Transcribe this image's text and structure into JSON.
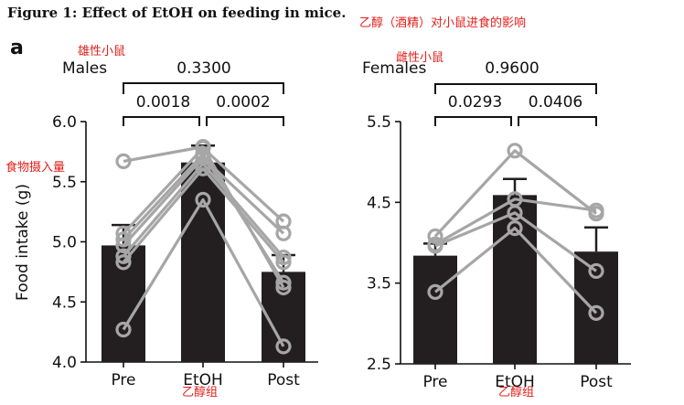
{
  "figure_title": "Figure 1: Effect of EtOH on feeding in mice.",
  "panel_letter": "a",
  "annotations_cn": {
    "figure_title": "乙醇（酒精）对小鼠进食的影响",
    "males": "雄性小鼠",
    "females": "雌性小鼠",
    "food_intake": "食物摄入量",
    "etoh_left": "乙醇组",
    "etoh_right": "乙醇组"
  },
  "colors": {
    "bar": "#231f20",
    "line": "#a6a6a6",
    "axis": "#111111",
    "annotation": "#e0201b"
  },
  "chart_data": [
    {
      "type": "bar",
      "group": "Males",
      "categories": [
        "Pre",
        "EtOH",
        "Post"
      ],
      "values": [
        4.97,
        5.66,
        4.75
      ],
      "errors": [
        0.17,
        0.14,
        0.14
      ],
      "ylabel": "Food intake (g)",
      "ylim": [
        4.0,
        6.0
      ],
      "yticks": [
        "4.0",
        "4.5",
        "5.0",
        "5.5",
        "6.0"
      ],
      "comparisons": [
        {
          "from": 0,
          "to": 1,
          "p": "0.0018"
        },
        {
          "from": 1,
          "to": 2,
          "p": "0.0002"
        },
        {
          "from": 0,
          "to": 2,
          "p": "0.3300"
        }
      ],
      "individuals": [
        [
          5.67,
          5.79,
          4.62
        ],
        [
          5.07,
          5.78,
          5.17
        ],
        [
          5.02,
          5.73,
          4.66
        ],
        [
          4.97,
          5.7,
          5.07
        ],
        [
          4.88,
          5.65,
          4.87
        ],
        [
          4.83,
          5.61,
          4.83
        ],
        [
          4.27,
          5.35,
          4.13
        ]
      ]
    },
    {
      "type": "bar",
      "group": "Females",
      "categories": [
        "Pre",
        "EtOH",
        "Post"
      ],
      "values": [
        3.84,
        4.59,
        3.89
      ],
      "errors": [
        0.15,
        0.2,
        0.3
      ],
      "ylabel": "",
      "ylim": [
        2.5,
        5.5
      ],
      "yticks": [
        "2.5",
        "3.5",
        "4.5",
        "5.5"
      ],
      "comparisons": [
        {
          "from": 0,
          "to": 1,
          "p": "0.0293"
        },
        {
          "from": 1,
          "to": 2,
          "p": "0.0406"
        },
        {
          "from": 0,
          "to": 2,
          "p": "0.9600"
        }
      ],
      "individuals": [
        [
          4.08,
          5.14,
          4.36
        ],
        [
          3.98,
          4.54,
          4.4
        ],
        [
          3.96,
          4.37,
          3.65
        ],
        [
          3.39,
          4.18,
          3.13
        ]
      ]
    }
  ]
}
